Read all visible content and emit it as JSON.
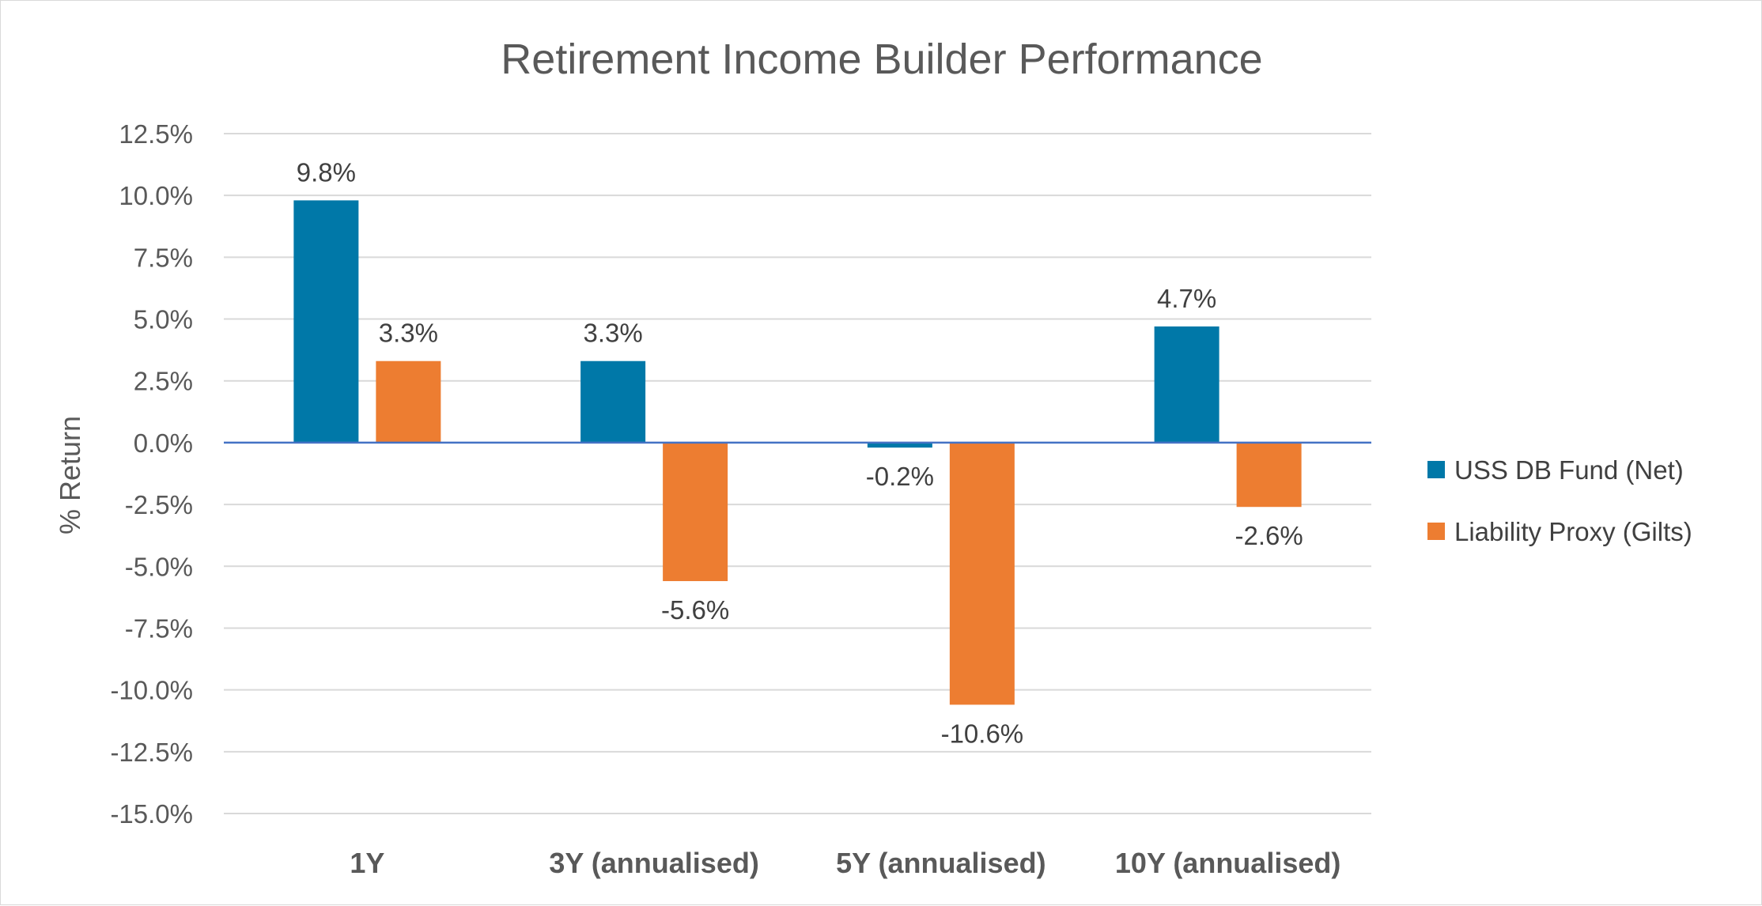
{
  "chart_data": {
    "type": "bar",
    "title": "Retirement Income Builder Performance",
    "xlabel": "",
    "ylabel": "% Return",
    "categories": [
      "1Y",
      "3Y (annualised)",
      "5Y (annualised)",
      "10Y (annualised)"
    ],
    "series": [
      {
        "name": "USS DB Fund (Net)",
        "color": "#0078a8",
        "values": [
          9.8,
          3.3,
          -0.2,
          4.7
        ],
        "labels": [
          "9.8%",
          "3.3%",
          "-0.2%",
          "4.7%"
        ]
      },
      {
        "name": "Liability Proxy (Gilts)",
        "color": "#ed7d31",
        "values": [
          3.3,
          -5.6,
          -10.6,
          -2.6
        ],
        "labels": [
          "3.3%",
          "-5.6%",
          "-10.6%",
          "-2.6%"
        ]
      }
    ],
    "ylim": [
      -15,
      12.5
    ],
    "yticks": [
      12.5,
      10,
      7.5,
      5,
      2.5,
      0,
      -2.5,
      -5,
      -7.5,
      -10,
      -12.5,
      -15
    ],
    "ytick_labels": [
      "12.5%",
      "10.0%",
      "7.5%",
      "5.0%",
      "2.5%",
      "0.0%",
      "-2.5%",
      "-5.0%",
      "-7.5%",
      "-10.0%",
      "-12.5%",
      "-15.0%"
    ],
    "grid": true,
    "legend_position": "right",
    "gridline_color": "#d9d9d9",
    "zero_line_color": "#4472c4"
  }
}
